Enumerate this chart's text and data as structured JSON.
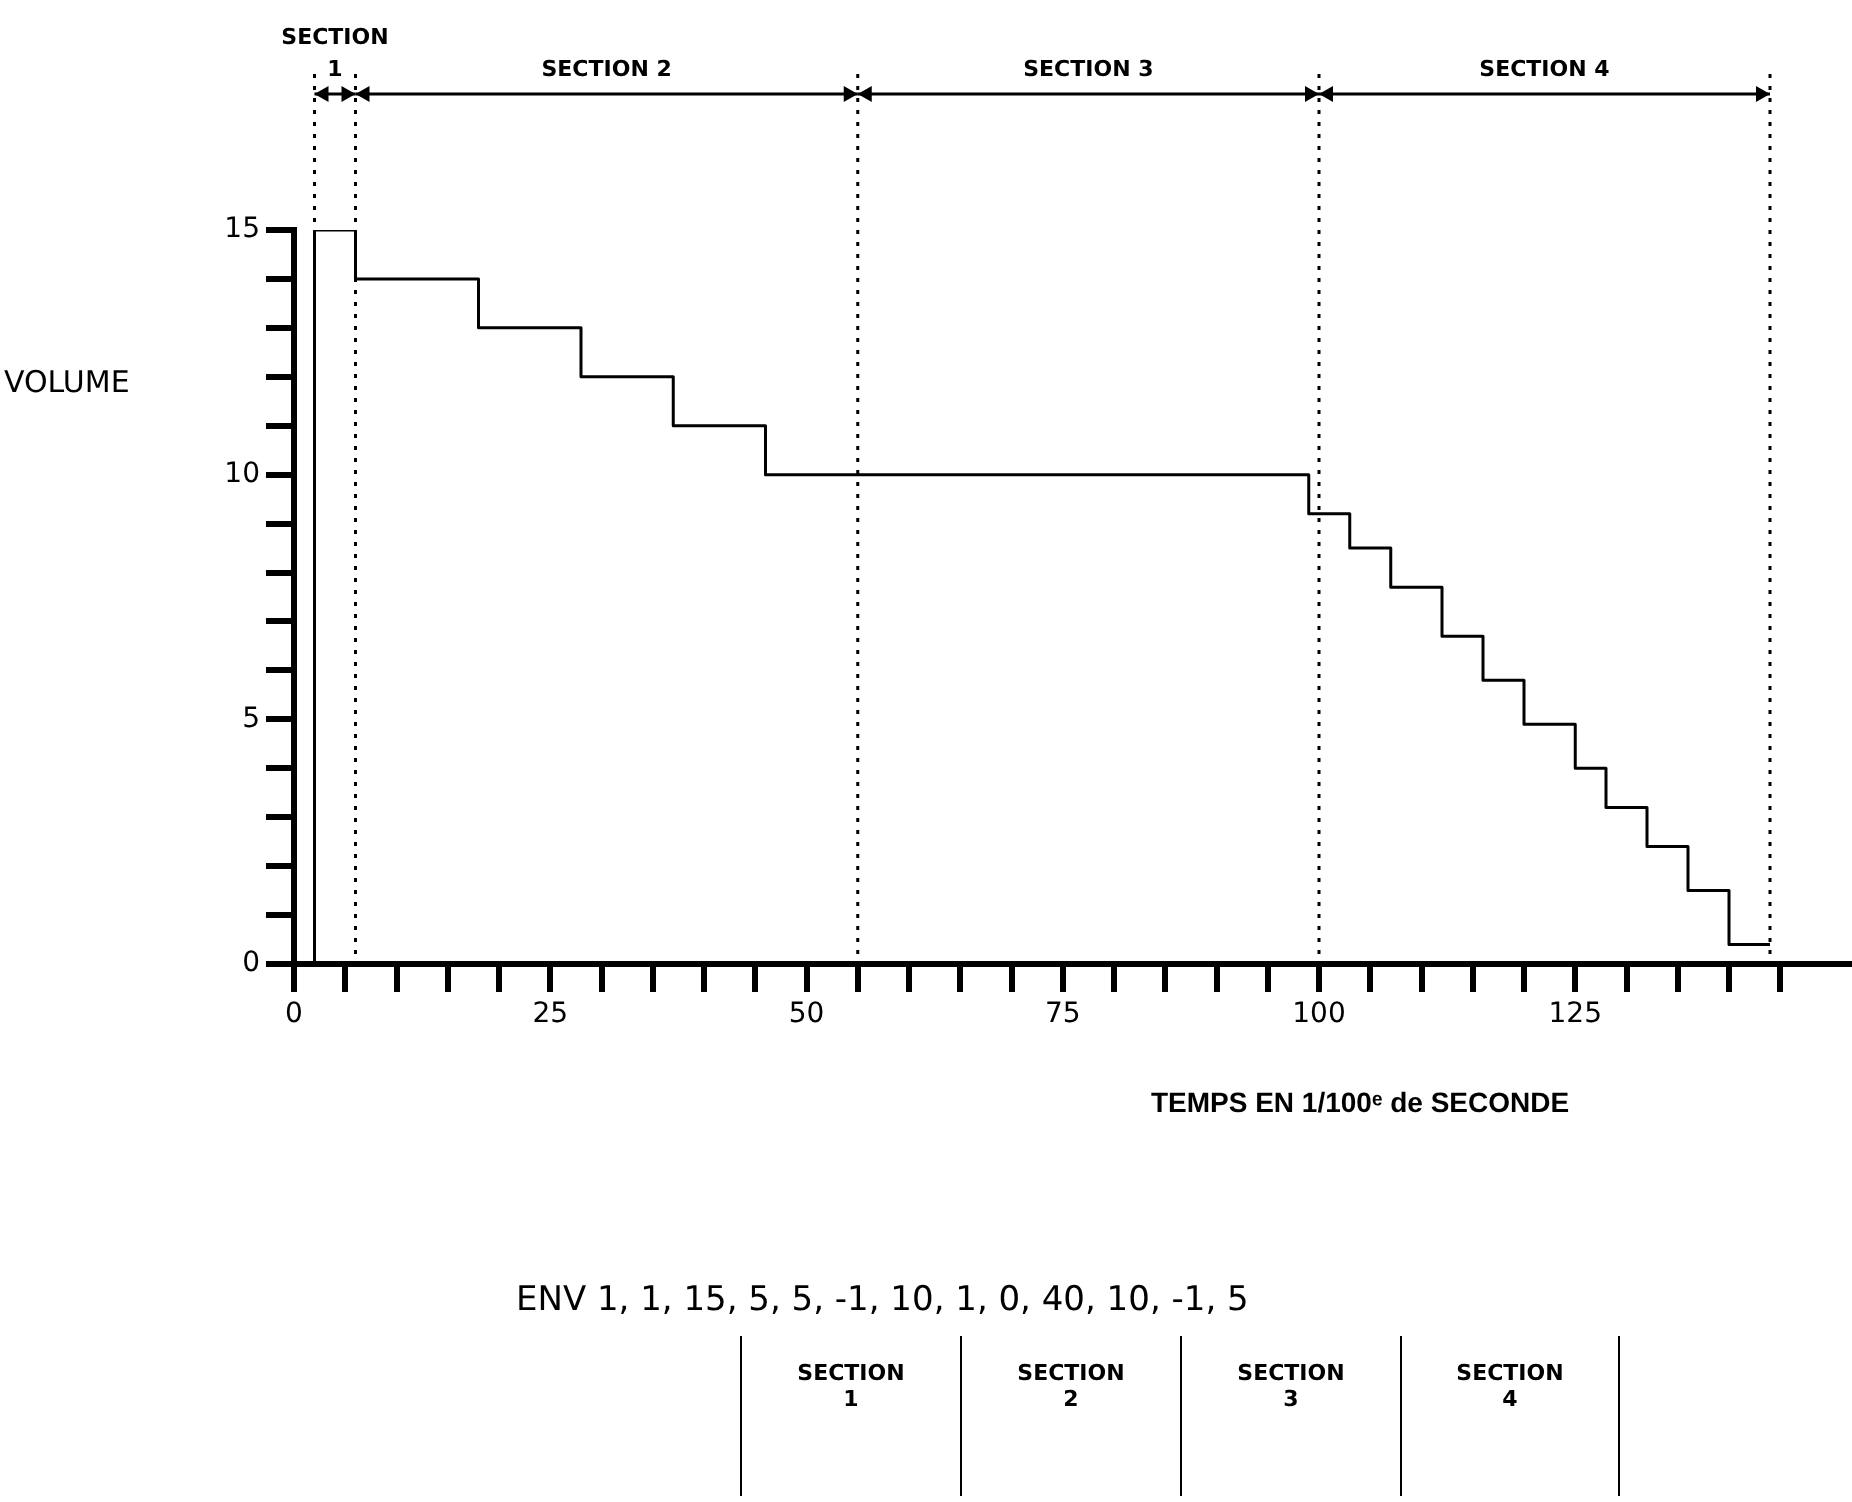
{
  "chart_data": {
    "type": "step",
    "xlabel": "TEMPS EN 1/100ᵉ de SECONDE",
    "ylabel": "VOLUME",
    "x": [
      2,
      2,
      6,
      18,
      28,
      37,
      46,
      99,
      103,
      107,
      112,
      116,
      120,
      125,
      128,
      132,
      136,
      140,
      144
    ],
    "values": [
      0,
      15,
      14,
      13,
      12,
      11,
      10,
      9.2,
      8.5,
      7.7,
      6.7,
      5.8,
      4.9,
      4.0,
      3.2,
      2.4,
      1.5,
      0.4,
      0.4
    ],
    "color": "#000000",
    "marker": "none",
    "line_style": "solid",
    "legend": false,
    "xlim": [
      0,
      152
    ],
    "ylim": [
      0,
      15
    ],
    "xticks": [
      0,
      {
        "value": 5,
        "label": null
      },
      {
        "value": 10,
        "label": null
      },
      {
        "value": 15,
        "label": null
      },
      {
        "value": 20,
        "label": null
      },
      25,
      {
        "value": 30,
        "label": null
      },
      {
        "value": 35,
        "label": null
      },
      {
        "value": 40,
        "label": null
      },
      {
        "value": 45,
        "label": null
      },
      50,
      {
        "value": 55,
        "label": null
      },
      {
        "value": 60,
        "label": null
      },
      {
        "value": 65,
        "label": null
      },
      {
        "value": 70,
        "label": null
      },
      75,
      {
        "value": 80,
        "label": null
      },
      {
        "value": 85,
        "label": null
      },
      {
        "value": 90,
        "label": null
      },
      {
        "value": 95,
        "label": null
      },
      100,
      {
        "value": 105,
        "label": null
      },
      {
        "value": 110,
        "label": null
      },
      {
        "value": 115,
        "label": null
      },
      {
        "value": 120,
        "label": null
      },
      125,
      {
        "value": 130,
        "label": null
      },
      {
        "value": 135,
        "label": null
      },
      {
        "value": 140,
        "label": null
      },
      {
        "value": 145,
        "label": null
      }
    ],
    "yticks": [
      0,
      {
        "value": 1,
        "label": null
      },
      {
        "value": 2,
        "label": null
      },
      {
        "value": 3,
        "label": null
      },
      {
        "value": 4,
        "label": null
      },
      5,
      {
        "value": 6,
        "label": null
      },
      {
        "value": 7,
        "label": null
      },
      {
        "value": 8,
        "label": null
      },
      {
        "value": 9,
        "label": null
      },
      10,
      {
        "value": 11,
        "label": null
      },
      {
        "value": 12,
        "label": null
      },
      {
        "value": 13,
        "label": null
      },
      {
        "value": 14,
        "label": null
      },
      15
    ],
    "ref_lines": [
      {
        "axis": "x",
        "value": 2,
        "line_style": "dotted"
      },
      {
        "axis": "x",
        "value": 6,
        "line_style": "dotted"
      },
      {
        "axis": "x",
        "value": 55,
        "line_style": "dotted"
      },
      {
        "axis": "x",
        "value": 100,
        "line_style": "dotted"
      },
      {
        "axis": "x",
        "value": 144,
        "line_style": "dotted"
      }
    ],
    "annotations": [
      "ENV 1, 1, 15, 5, 5, -1, 10, 1, 0, 40, 10, -1, 5",
      "SECTION 1",
      "SECTION 2",
      "SECTION 3",
      "SECTION 4",
      "SECTION 1",
      "SECTION 2",
      "SECTION 3",
      "SECTION 4"
    ]
  }
}
